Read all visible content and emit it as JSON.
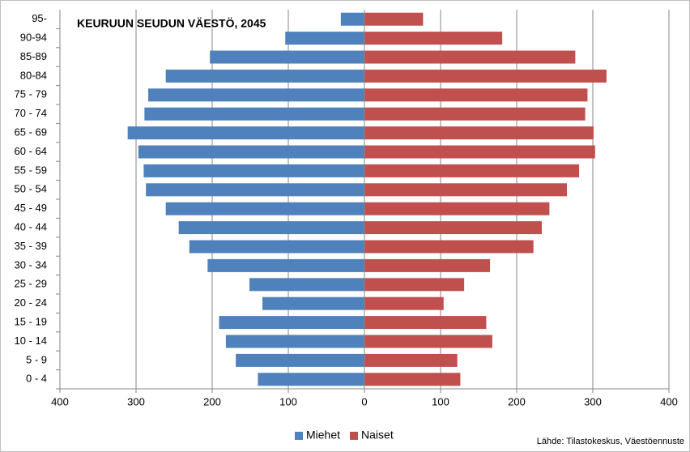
{
  "chart_data": {
    "type": "bar",
    "orientation": "horizontal",
    "stacked": true,
    "title": "KEURUUN SEUDUN VÄESTÖ, 2045",
    "source": "Lähde: Tilastokeskus, Väestöennuste",
    "categories": [
      "0 - 4",
      "5 - 9",
      "10 - 14",
      "15 - 19",
      "20 - 24",
      "25 - 29",
      "30 - 34",
      "35 - 39",
      "40 - 44",
      "45 - 49",
      "50 - 54",
      "55 - 59",
      "60 - 64",
      "65 - 69",
      "70 - 74",
      "75 - 79",
      "80-84",
      "85-89",
      "90-94",
      "95-"
    ],
    "series": [
      {
        "name": "Miehet",
        "color": "#4f81bd",
        "values": [
          -140,
          -169,
          -182,
          -191,
          -134,
          -151,
          -206,
          -230,
          -244,
          -261,
          -287,
          -290,
          -297,
          -311,
          -289,
          -284,
          -261,
          -203,
          -104,
          -31
        ]
      },
      {
        "name": "Naiset",
        "color": "#c0504d",
        "values": [
          126,
          122,
          168,
          160,
          104,
          131,
          165,
          222,
          233,
          243,
          266,
          282,
          303,
          301,
          290,
          293,
          318,
          277,
          181,
          77
        ]
      }
    ],
    "xlim": [
      -400,
      400
    ],
    "xticks": [
      {
        "value": -400,
        "label": "400"
      },
      {
        "value": -300,
        "label": "300"
      },
      {
        "value": -200,
        "label": "200"
      },
      {
        "value": -100,
        "label": "100"
      },
      0,
      100,
      200,
      300,
      400
    ],
    "grid": true,
    "legend": "bottom"
  }
}
